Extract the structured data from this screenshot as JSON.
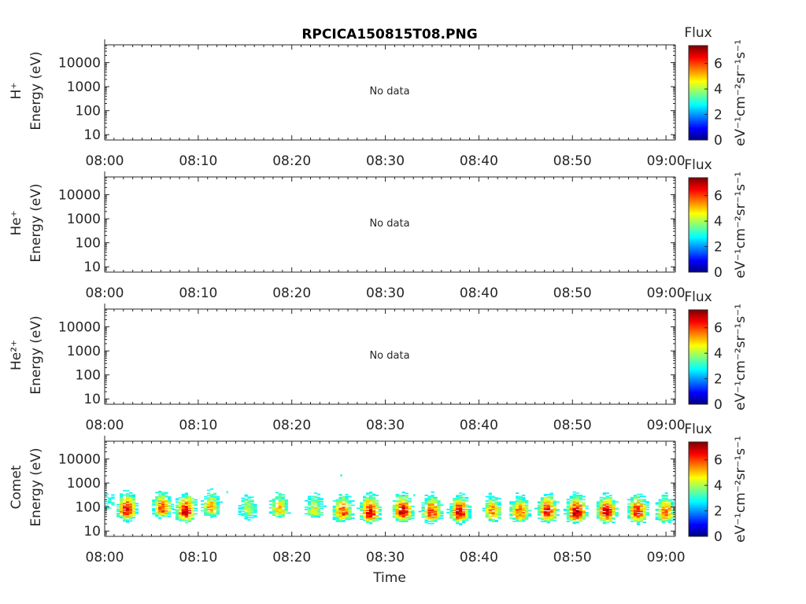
{
  "chart_data": {
    "type": "heatmap",
    "title": "RPCICA150815T08.PNG",
    "xlabel": "Time",
    "x_ticks": [
      "08:00",
      "08:10",
      "08:20",
      "08:30",
      "08:40",
      "08:50",
      "09:00"
    ],
    "x_range_minutes": [
      0,
      61
    ],
    "y_ticks": [
      "10",
      "100",
      "1000",
      "10000"
    ],
    "y_range_eV": [
      6,
      55000
    ],
    "y_scale": "log",
    "colorbar": {
      "label": "Flux",
      "units_label": "eV⁻¹cm⁻²sr⁻¹s⁻¹",
      "ticks": [
        "0",
        "2",
        "4",
        "6"
      ],
      "range": [
        0,
        7.4
      ],
      "colormap": "jet"
    },
    "panels": [
      {
        "species": "H⁺",
        "ylabel": "Energy (eV)",
        "status": "No data"
      },
      {
        "species": "He⁺",
        "ylabel": "Energy (eV)",
        "status": "No data"
      },
      {
        "species": "He²⁺",
        "ylabel": "Energy (eV)",
        "status": "No data"
      },
      {
        "species": "Comet",
        "ylabel": "Energy (eV)",
        "status": "",
        "bursts": [
          {
            "t": 0.3,
            "e": 130,
            "v": 3.0
          },
          {
            "t": 2.2,
            "e": 70,
            "v": 6.5
          },
          {
            "t": 6.0,
            "e": 80,
            "v": 6.0
          },
          {
            "t": 8.5,
            "e": 60,
            "v": 6.8
          },
          {
            "t": 11.2,
            "e": 90,
            "v": 5.2
          },
          {
            "t": 15.2,
            "e": 70,
            "v": 4.2
          },
          {
            "t": 18.5,
            "e": 80,
            "v": 5.0
          },
          {
            "t": 22.3,
            "e": 75,
            "v": 4.5
          },
          {
            "t": 25.3,
            "e": 60,
            "v": 6.0
          },
          {
            "t": 28.2,
            "e": 55,
            "v": 6.8
          },
          {
            "t": 31.7,
            "e": 60,
            "v": 6.8
          },
          {
            "t": 34.8,
            "e": 55,
            "v": 6.2
          },
          {
            "t": 37.8,
            "e": 55,
            "v": 6.7
          },
          {
            "t": 41.3,
            "e": 60,
            "v": 5.5
          },
          {
            "t": 44.2,
            "e": 55,
            "v": 5.8
          },
          {
            "t": 47.2,
            "e": 60,
            "v": 6.5
          },
          {
            "t": 50.3,
            "e": 55,
            "v": 7.0
          },
          {
            "t": 53.5,
            "e": 55,
            "v": 6.8
          },
          {
            "t": 56.8,
            "e": 55,
            "v": 6.5
          },
          {
            "t": 59.8,
            "e": 55,
            "v": 5.8
          }
        ]
      }
    ]
  }
}
